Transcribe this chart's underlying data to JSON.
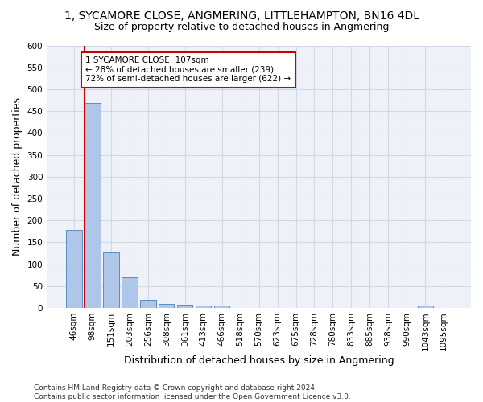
{
  "title_line1": "1, SYCAMORE CLOSE, ANGMERING, LITTLEHAMPTON, BN16 4DL",
  "title_line2": "Size of property relative to detached houses in Angmering",
  "xlabel": "Distribution of detached houses by size in Angmering",
  "ylabel": "Number of detached properties",
  "bin_labels": [
    "46sqm",
    "98sqm",
    "151sqm",
    "203sqm",
    "256sqm",
    "308sqm",
    "361sqm",
    "413sqm",
    "466sqm",
    "518sqm",
    "570sqm",
    "623sqm",
    "675sqm",
    "728sqm",
    "780sqm",
    "833sqm",
    "885sqm",
    "938sqm",
    "990sqm",
    "1043sqm",
    "1095sqm"
  ],
  "bar_values": [
    178,
    468,
    126,
    70,
    18,
    10,
    7,
    5,
    5,
    0,
    0,
    0,
    0,
    0,
    0,
    0,
    0,
    0,
    0,
    5,
    0
  ],
  "bar_color": "#aec6e8",
  "bar_edge_color": "#5a8fc2",
  "subject_line_color": "#cc0000",
  "annotation_text": "1 SYCAMORE CLOSE: 107sqm\n← 28% of detached houses are smaller (239)\n72% of semi-detached houses are larger (622) →",
  "annotation_box_color": "#ffffff",
  "annotation_box_edge": "#cc0000",
  "ylim": [
    0,
    600
  ],
  "yticks": [
    0,
    50,
    100,
    150,
    200,
    250,
    300,
    350,
    400,
    450,
    500,
    550,
    600
  ],
  "footer_line1": "Contains HM Land Registry data © Crown copyright and database right 2024.",
  "footer_line2": "Contains public sector information licensed under the Open Government Licence v3.0.",
  "bg_color": "#eef2f8",
  "grid_color": "#d0d8e8",
  "title1_fontsize": 10,
  "title2_fontsize": 9,
  "axis_label_fontsize": 9,
  "tick_fontsize": 7.5,
  "annotation_fontsize": 7.5,
  "footer_fontsize": 6.5
}
